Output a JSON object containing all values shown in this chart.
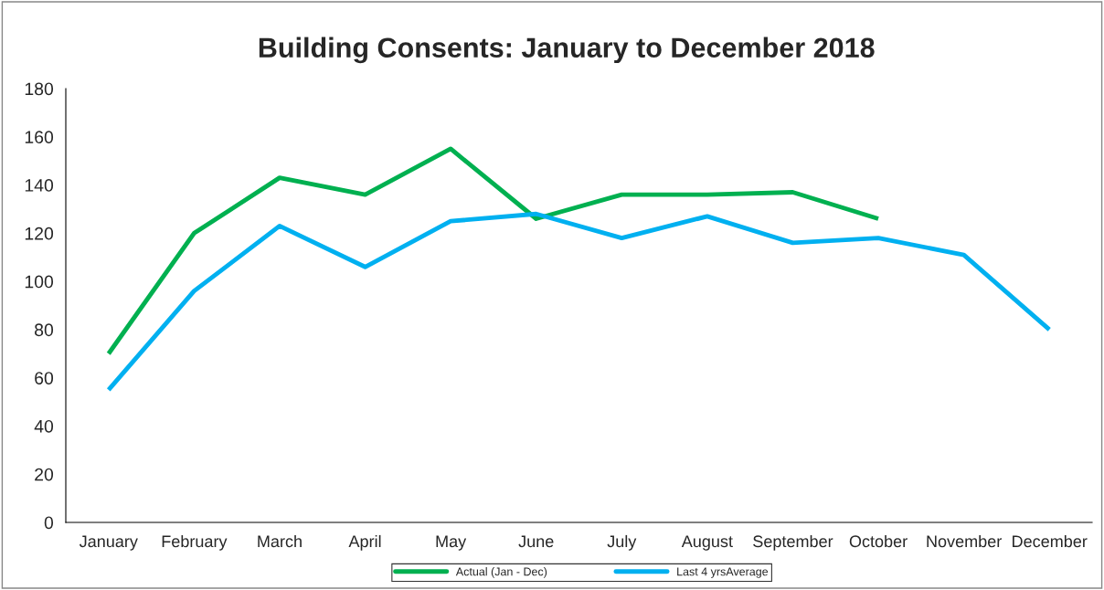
{
  "chart_data": {
    "type": "line",
    "title": "Building Consents: January to December 2018",
    "categories": [
      "January",
      "February",
      "March",
      "April",
      "May",
      "June",
      "July",
      "August",
      "September",
      "October",
      "November",
      "December"
    ],
    "series": [
      {
        "name": "Actual (Jan - Dec)",
        "color": "#00b050",
        "values": [
          70,
          120,
          143,
          136,
          155,
          126,
          136,
          136,
          137,
          126,
          null,
          null
        ]
      },
      {
        "name": "Last 4 yrsAverage",
        "color": "#00b0f0",
        "values": [
          55,
          96,
          123,
          106,
          125,
          128,
          118,
          127,
          116,
          118,
          111,
          80
        ]
      }
    ],
    "ylim": [
      0,
      180
    ],
    "yticks": [
      0,
      20,
      40,
      60,
      80,
      100,
      120,
      140,
      160,
      180
    ],
    "legend": "bottom",
    "marker": "none",
    "line_style": "solid",
    "grid": false
  }
}
